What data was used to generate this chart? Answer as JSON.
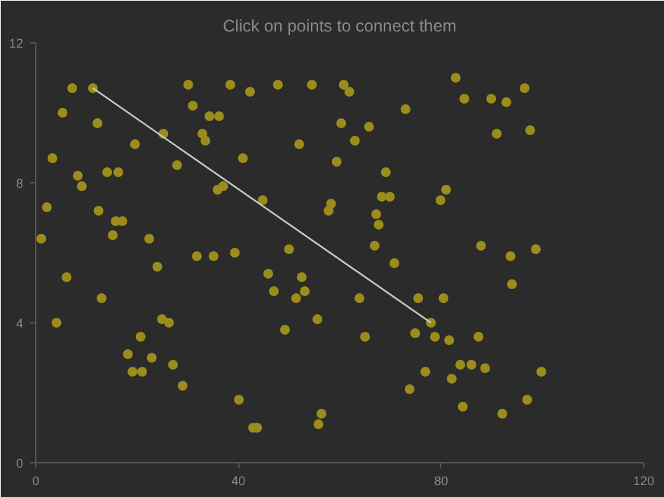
{
  "chart_data": {
    "type": "scatter",
    "title": "Click on points to connect them",
    "xlim": [
      0,
      120
    ],
    "ylim": [
      0,
      12
    ],
    "xticks": [
      0,
      40,
      80,
      120
    ],
    "yticks": [
      0,
      4,
      8,
      12
    ],
    "grid": false,
    "series": [
      {
        "marker": "circle",
        "color": "#9c8c1c",
        "x": [
          1.1,
          2.2,
          3.3,
          4.1,
          5.3,
          6.1,
          7.2,
          8.3,
          9.1,
          11.3,
          12.2,
          12.4,
          13.0,
          14.1,
          15.2,
          15.8,
          16.3,
          17.1,
          18.2,
          19.1,
          19.6,
          20.7,
          21.0,
          22.4,
          22.9,
          24.0,
          24.9,
          25.2,
          26.3,
          27.1,
          27.9,
          29.0,
          30.1,
          31.0,
          31.8,
          32.9,
          33.5,
          34.3,
          35.1,
          35.9,
          36.2,
          37.0,
          38.4,
          39.3,
          40.1,
          40.9,
          42.3,
          42.9,
          43.7,
          44.8,
          45.9,
          47.0,
          47.8,
          49.2,
          50.0,
          51.4,
          52.0,
          52.5,
          53.1,
          54.5,
          55.6,
          55.8,
          56.4,
          57.8,
          58.3,
          59.4,
          60.3,
          60.8,
          61.9,
          63.0,
          63.9,
          65.0,
          65.8,
          66.9,
          67.2,
          67.7,
          68.3,
          69.1,
          69.9,
          70.8,
          73.0,
          73.8,
          74.9,
          75.5,
          76.9,
          78.0,
          78.8,
          79.9,
          80.5,
          81.0,
          81.6,
          82.1,
          82.9,
          83.8,
          84.3,
          84.6,
          86.0,
          87.4,
          87.9,
          88.7,
          89.9,
          91.0,
          92.1,
          92.9,
          93.7,
          94.0,
          96.5,
          97.0,
          97.6,
          98.7,
          99.8
        ],
        "values": [
          6.4,
          7.3,
          8.7,
          4.0,
          10.0,
          5.3,
          10.7,
          8.2,
          7.9,
          10.7,
          9.7,
          7.2,
          4.7,
          8.3,
          6.5,
          6.9,
          8.3,
          6.9,
          3.1,
          2.6,
          9.1,
          3.6,
          2.6,
          6.4,
          3.0,
          5.6,
          4.1,
          9.4,
          4.0,
          2.8,
          8.5,
          2.2,
          10.8,
          10.2,
          5.9,
          9.4,
          9.2,
          9.9,
          5.9,
          7.8,
          9.9,
          7.9,
          10.8,
          6.0,
          1.8,
          8.7,
          10.6,
          1.0,
          1.0,
          7.5,
          5.4,
          4.9,
          10.8,
          3.8,
          6.1,
          4.7,
          9.1,
          5.3,
          4.9,
          10.8,
          4.1,
          1.1,
          1.4,
          7.2,
          7.4,
          8.6,
          9.7,
          10.8,
          10.6,
          9.2,
          4.7,
          3.6,
          9.6,
          6.2,
          7.1,
          6.8,
          7.6,
          8.3,
          7.6,
          5.7,
          10.1,
          2.1,
          3.7,
          4.7,
          2.6,
          4.0,
          3.6,
          7.5,
          4.7,
          7.8,
          3.5,
          2.4,
          11.0,
          2.8,
          1.6,
          10.4,
          2.8,
          3.6,
          6.2,
          2.7,
          10.4,
          9.4,
          1.4,
          10.3,
          5.9,
          5.1,
          10.7,
          1.8,
          9.5,
          6.1,
          2.6
        ]
      },
      {
        "type": "line",
        "marker": "none",
        "color": "#c8c8c8",
        "x": [
          11.3,
          78.0
        ],
        "values": [
          10.7,
          4.0
        ]
      }
    ]
  }
}
